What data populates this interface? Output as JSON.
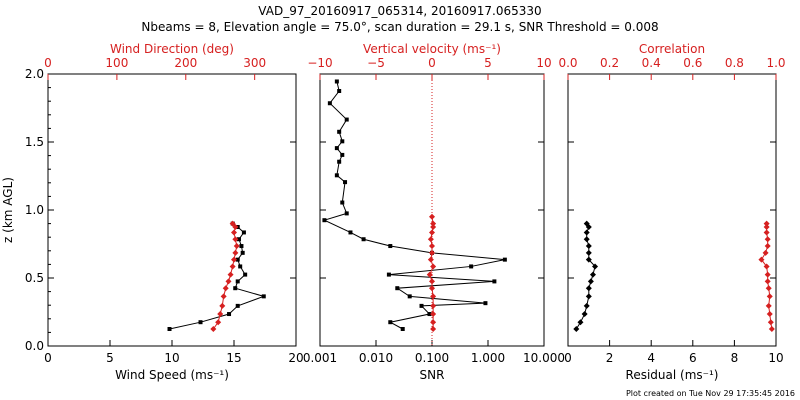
{
  "figure": {
    "title_line1": "VAD_97_20160917_065314, 20160917.065330",
    "title_line2": "Nbeams = 8, Elevation angle = 75.0°, scan duration = 29.1 s, SNR Threshold = 0.008",
    "footer": "Plot created on Tue Nov 29 17:35:45 2016"
  },
  "colors": {
    "black": "#000000",
    "red": "#d62020"
  },
  "chart_data": [
    {
      "type": "line",
      "ylabel": "z (km AGL)",
      "ylim": [
        0,
        2.0
      ],
      "yticks": [
        "0.0",
        "0.5",
        "1.0",
        "1.5",
        "2.0"
      ],
      "bottom_axis": {
        "label": "Wind Speed (ms⁻¹)",
        "xlim": [
          0,
          20
        ],
        "ticks": [
          "0",
          "5",
          "10",
          "15",
          "20"
        ],
        "scale": "linear"
      },
      "top_axis": {
        "label": "Wind Direction (deg)",
        "xlim": [
          0,
          360
        ],
        "ticks": [
          "0",
          "100",
          "200",
          "300"
        ],
        "scale": "linear"
      },
      "series": [
        {
          "axis": "bottom",
          "color": "#000000",
          "marker": "square",
          "x": [
            9.8,
            12.3,
            14.6,
            15.3,
            17.4,
            15.1,
            15.3,
            15.9,
            15.5,
            15.3,
            15.7,
            15.6,
            15.4,
            15.8,
            15.3,
            14.9
          ],
          "y": [
            0.125,
            0.175,
            0.235,
            0.295,
            0.365,
            0.425,
            0.475,
            0.525,
            0.585,
            0.635,
            0.685,
            0.735,
            0.785,
            0.835,
            0.875,
            0.9
          ]
        },
        {
          "axis": "top",
          "color": "#d62020",
          "marker": "diamond",
          "x": [
            240,
            247,
            250,
            253,
            255,
            258,
            262,
            265,
            268,
            270,
            272,
            274,
            272,
            270,
            272,
            268
          ],
          "y": [
            0.125,
            0.175,
            0.235,
            0.295,
            0.365,
            0.425,
            0.475,
            0.525,
            0.585,
            0.635,
            0.685,
            0.735,
            0.785,
            0.835,
            0.875,
            0.9
          ]
        }
      ]
    },
    {
      "type": "line",
      "ylim": [
        0,
        2.0
      ],
      "bottom_axis": {
        "label": "SNR",
        "xlim": [
          0.001,
          10
        ],
        "ticks": [
          "0.001",
          "0.010",
          "0.100",
          "1.000",
          "10.000"
        ],
        "scale": "log"
      },
      "top_axis": {
        "label": "Vertical velocity (ms⁻¹)",
        "xlim": [
          -10,
          10
        ],
        "ticks": [
          "−10",
          "−5",
          "0",
          "5",
          "10"
        ],
        "scale": "linear"
      },
      "reference_line": {
        "axis": "top",
        "x": 0,
        "style": "dotted",
        "color": "#d62020"
      },
      "series": [
        {
          "axis": "bottom",
          "color": "#000000",
          "marker": "square",
          "x": [
            0.03,
            0.018,
            0.09,
            0.065,
            0.9,
            0.04,
            0.024,
            1.3,
            0.017,
            0.5,
            2.0,
            0.1,
            0.018,
            0.006,
            0.0035,
            0.0012,
            0.003,
            0.0025,
            0.0028,
            0.002,
            0.0022,
            0.0025,
            0.002,
            0.0025,
            0.0022,
            0.003,
            0.0015,
            0.0022,
            0.002
          ],
          "y": [
            0.125,
            0.175,
            0.235,
            0.295,
            0.315,
            0.365,
            0.425,
            0.475,
            0.525,
            0.585,
            0.635,
            0.685,
            0.735,
            0.785,
            0.835,
            0.925,
            0.975,
            1.055,
            1.205,
            1.255,
            1.355,
            1.405,
            1.455,
            1.505,
            1.575,
            1.665,
            1.785,
            1.875,
            1.945
          ]
        },
        {
          "axis": "top",
          "color": "#d62020",
          "marker": "diamond",
          "x": [
            0.1,
            0.1,
            0.1,
            0.1,
            0.1,
            0.0,
            0.0,
            -0.2,
            0.1,
            -0.1,
            0.0,
            0.0,
            -0.1,
            0.0,
            0.1,
            0.1,
            0.0
          ],
          "y": [
            0.125,
            0.175,
            0.235,
            0.295,
            0.365,
            0.425,
            0.475,
            0.525,
            0.585,
            0.635,
            0.685,
            0.735,
            0.785,
            0.835,
            0.875,
            0.9,
            0.95
          ]
        }
      ]
    },
    {
      "type": "line",
      "ylim": [
        0,
        2.0
      ],
      "bottom_axis": {
        "label": "Residual (ms⁻¹)",
        "xlim": [
          0,
          10
        ],
        "ticks": [
          "0",
          "2",
          "4",
          "6",
          "8",
          "10"
        ],
        "scale": "linear"
      },
      "top_axis": {
        "label": "Correlation",
        "xlim": [
          0,
          1.0
        ],
        "ticks": [
          "0.0",
          "0.2",
          "0.4",
          "0.6",
          "0.8",
          "1.0"
        ],
        "scale": "linear"
      },
      "series": [
        {
          "axis": "bottom",
          "color": "#000000",
          "marker": "diamond",
          "x": [
            0.4,
            0.6,
            0.8,
            0.9,
            1.0,
            1.0,
            1.1,
            1.2,
            1.3,
            1.0,
            1.0,
            1.0,
            0.9,
            0.9,
            1.0,
            0.9
          ],
          "y": [
            0.125,
            0.175,
            0.235,
            0.295,
            0.365,
            0.425,
            0.475,
            0.525,
            0.585,
            0.635,
            0.685,
            0.735,
            0.785,
            0.835,
            0.875,
            0.9
          ]
        },
        {
          "axis": "top",
          "color": "#d62020",
          "marker": "diamond",
          "x": [
            0.98,
            0.975,
            0.97,
            0.965,
            0.97,
            0.965,
            0.96,
            0.96,
            0.955,
            0.93,
            0.95,
            0.96,
            0.96,
            0.955,
            0.955,
            0.955
          ],
          "y": [
            0.125,
            0.175,
            0.235,
            0.295,
            0.365,
            0.425,
            0.475,
            0.525,
            0.585,
            0.635,
            0.685,
            0.735,
            0.785,
            0.835,
            0.875,
            0.9
          ]
        }
      ]
    }
  ]
}
